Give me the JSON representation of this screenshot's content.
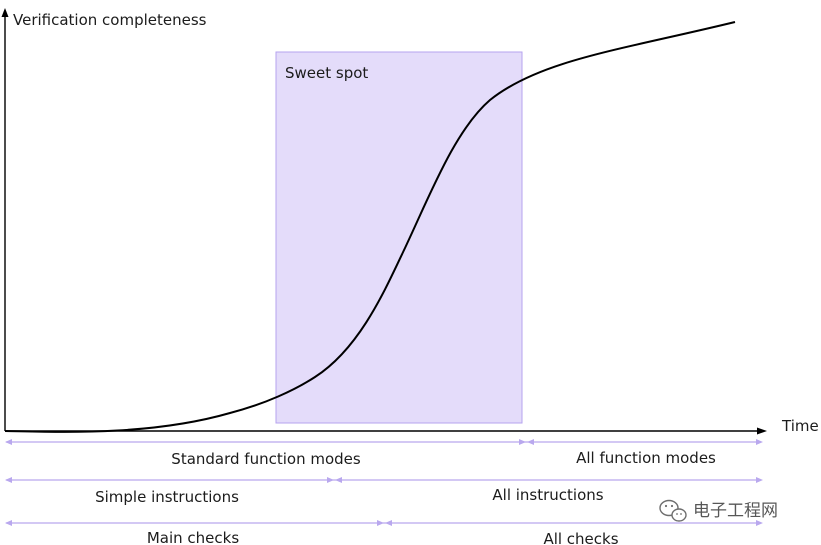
{
  "diagram": {
    "y_axis_label": "Verification completeness",
    "x_axis_label": "Time",
    "region_label": "Sweet spot",
    "colors": {
      "region_fill": "#e4dcfa",
      "region_stroke": "#b6a3ef",
      "range_arrow": "#b9a8ee",
      "curve": "#000000"
    },
    "ranges": [
      {
        "row": "function-modes",
        "segments": [
          {
            "label": "Standard function modes"
          },
          {
            "label": "All function modes"
          }
        ]
      },
      {
        "row": "instructions",
        "segments": [
          {
            "label": "Simple instructions"
          },
          {
            "label": "All instructions"
          }
        ]
      },
      {
        "row": "checks",
        "segments": [
          {
            "label": "Main checks"
          },
          {
            "label": "All checks"
          }
        ]
      }
    ]
  },
  "watermark": {
    "text": "电子工程网",
    "icon": "wechat-logo-icon"
  }
}
